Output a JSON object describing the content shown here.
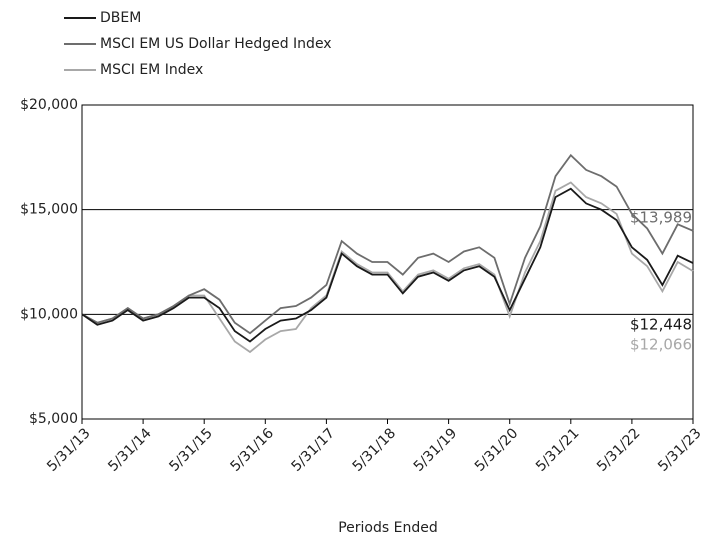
{
  "chart_data": {
    "type": "line",
    "x_label": "Periods Ended",
    "x": [
      2013,
      2013.25,
      2013.5,
      2013.75,
      2014,
      2014.25,
      2014.5,
      2014.75,
      2015,
      2015.25,
      2015.5,
      2015.75,
      2016,
      2016.25,
      2016.5,
      2016.75,
      2017,
      2017.25,
      2017.5,
      2017.75,
      2018,
      2018.25,
      2018.5,
      2018.75,
      2019,
      2019.25,
      2019.5,
      2019.75,
      2020,
      2020.25,
      2020.5,
      2020.75,
      2021,
      2021.25,
      2021.5,
      2021.75,
      2022,
      2022.25,
      2022.5,
      2022.75,
      2023
    ],
    "series": [
      {
        "name": "DBEM",
        "color": "#1a1a1a",
        "end_label": "$12,448",
        "values": [
          10000,
          9500,
          9700,
          10200,
          9700,
          9900,
          10300,
          10800,
          10800,
          10300,
          9200,
          8700,
          9300,
          9700,
          9800,
          10200,
          10800,
          12900,
          12300,
          11900,
          11900,
          11000,
          11800,
          12000,
          11600,
          12100,
          12300,
          11800,
          10200,
          11700,
          13200,
          15600,
          16000,
          15300,
          15000,
          14500,
          13200,
          12600,
          11400,
          12800,
          12448
        ]
      },
      {
        "name": "MSCI EM US Dollar Hedged Index",
        "color": "#6d6d6d",
        "end_label": "$13,989",
        "values": [
          10000,
          9600,
          9800,
          10300,
          9800,
          10000,
          10400,
          10900,
          11200,
          10700,
          9600,
          9100,
          9700,
          10300,
          10400,
          10800,
          11400,
          13500,
          12900,
          12500,
          12500,
          11900,
          12700,
          12900,
          12500,
          13000,
          13200,
          12700,
          10500,
          12700,
          14200,
          16600,
          17600,
          16900,
          16600,
          16100,
          14800,
          14100,
          12900,
          14300,
          13989
        ]
      },
      {
        "name": "MSCI EM Index",
        "color": "#a8a8a8",
        "end_label": "$12,066",
        "values": [
          10000,
          9600,
          9800,
          10300,
          9800,
          10000,
          10400,
          10900,
          10900,
          9800,
          8700,
          8200,
          8800,
          9200,
          9300,
          10300,
          10900,
          13000,
          12400,
          12000,
          12000,
          11100,
          11900,
          12100,
          11700,
          12200,
          12400,
          11900,
          9900,
          12000,
          13500,
          15900,
          16300,
          15600,
          15300,
          14800,
          12900,
          12300,
          11100,
          12500,
          12066
        ]
      }
    ],
    "xlim": [
      2013,
      2023
    ],
    "xticks": [
      {
        "value": 2013,
        "label": "5/31/13"
      },
      {
        "value": 2014,
        "label": "5/31/14"
      },
      {
        "value": 2015,
        "label": "5/31/15"
      },
      {
        "value": 2016,
        "label": "5/31/16"
      },
      {
        "value": 2017,
        "label": "5/31/17"
      },
      {
        "value": 2018,
        "label": "5/31/18"
      },
      {
        "value": 2019,
        "label": "5/31/19"
      },
      {
        "value": 2020,
        "label": "5/31/20"
      },
      {
        "value": 2021,
        "label": "5/31/21"
      },
      {
        "value": 2022,
        "label": "5/31/22"
      },
      {
        "value": 2023,
        "label": "5/31/23"
      }
    ],
    "ylim": [
      5000,
      20000
    ],
    "yticks": [
      {
        "value": 5000,
        "label": "$5,000"
      },
      {
        "value": 10000,
        "label": "$10,000"
      },
      {
        "value": 15000,
        "label": "$15,000"
      },
      {
        "value": 20000,
        "label": "$20,000"
      }
    ],
    "grid": true
  }
}
